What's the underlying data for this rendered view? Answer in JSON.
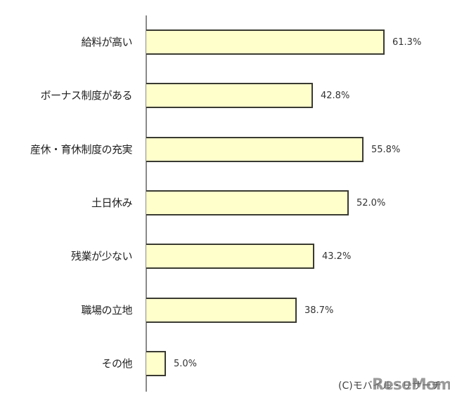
{
  "chart_data": {
    "type": "bar",
    "orientation": "horizontal",
    "title": "",
    "xlabel": "",
    "ylabel": "",
    "xlim": [
      0,
      70
    ],
    "grid": false,
    "legend": null,
    "categories": [
      "給料が高い",
      "ボーナス制度がある",
      "産休・育休制度の充実",
      "土日休み",
      "残業が少ない",
      "職場の立地",
      "その他"
    ],
    "values": [
      61.3,
      42.8,
      55.8,
      52.0,
      43.2,
      38.7,
      5.0
    ],
    "value_labels": [
      "61.3%",
      "42.8%",
      "55.8%",
      "52.0%",
      "43.2%",
      "38.7%",
      "5.0%"
    ],
    "unit": "%",
    "colors": {
      "bar_fill": "#ffffcc",
      "bar_border": "#3a3a32",
      "axis": "#8a8a8a",
      "text": "#222222"
    }
  },
  "credit": "(C)モバイル・リサーチ",
  "watermark": "ReseMom"
}
